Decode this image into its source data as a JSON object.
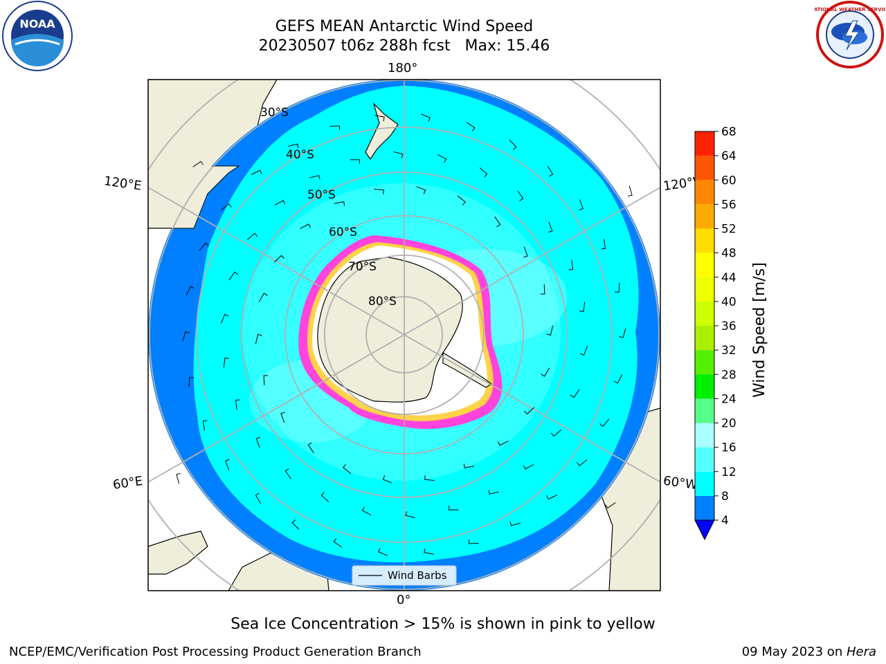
{
  "header": {
    "title_line1": "GEFS MEAN Antarctic Wind Speed",
    "title_line2": "20230507 t06z 288h fcst   Max: 15.46"
  },
  "map": {
    "projection": "south-polar-stereographic",
    "lon_labels": {
      "top": "180°",
      "bottom": "0°",
      "left_upper": "120°E",
      "left_lower": "60°E",
      "right_upper": "120°W",
      "right_lower": "60°W"
    },
    "lat_labels": [
      "30°S",
      "40°S",
      "50°S",
      "60°S",
      "70°S",
      "80°S"
    ],
    "legend_label": "Wind Barbs",
    "colors": {
      "ocean_light": "#00ffff",
      "ocean_dark": "#0080ff",
      "land": "#efeedb",
      "ice_edge": "#ff44dd",
      "grid": "#b0b0b0"
    }
  },
  "colorbar": {
    "label": "Wind Speed [m/s]",
    "ticks": [
      "4",
      "8",
      "12",
      "16",
      "20",
      "24",
      "28",
      "32",
      "36",
      "40",
      "44",
      "48",
      "52",
      "56",
      "60",
      "64",
      "68"
    ],
    "colors": [
      "#0080ff",
      "#00ffff",
      "#55ffff",
      "#aaffff",
      "#55ff88",
      "#00ee00",
      "#55ee00",
      "#aaee00",
      "#ccff00",
      "#eeff00",
      "#ffff00",
      "#ffdd00",
      "#ffaa00",
      "#ff8800",
      "#ff5500",
      "#ff2200"
    ],
    "extend_color": "#0000ff"
  },
  "caption": "Sea Ice Concentration > 15% is shown in pink to yellow",
  "footer": {
    "left": "NCEP/EMC/Verification Post Processing Product Generation Branch",
    "right_date": "09 May 2023 on ",
    "right_host": "Hera"
  },
  "logos": {
    "noaa": "NOAA",
    "nws": "NATIONAL WEATHER SERVICE"
  }
}
